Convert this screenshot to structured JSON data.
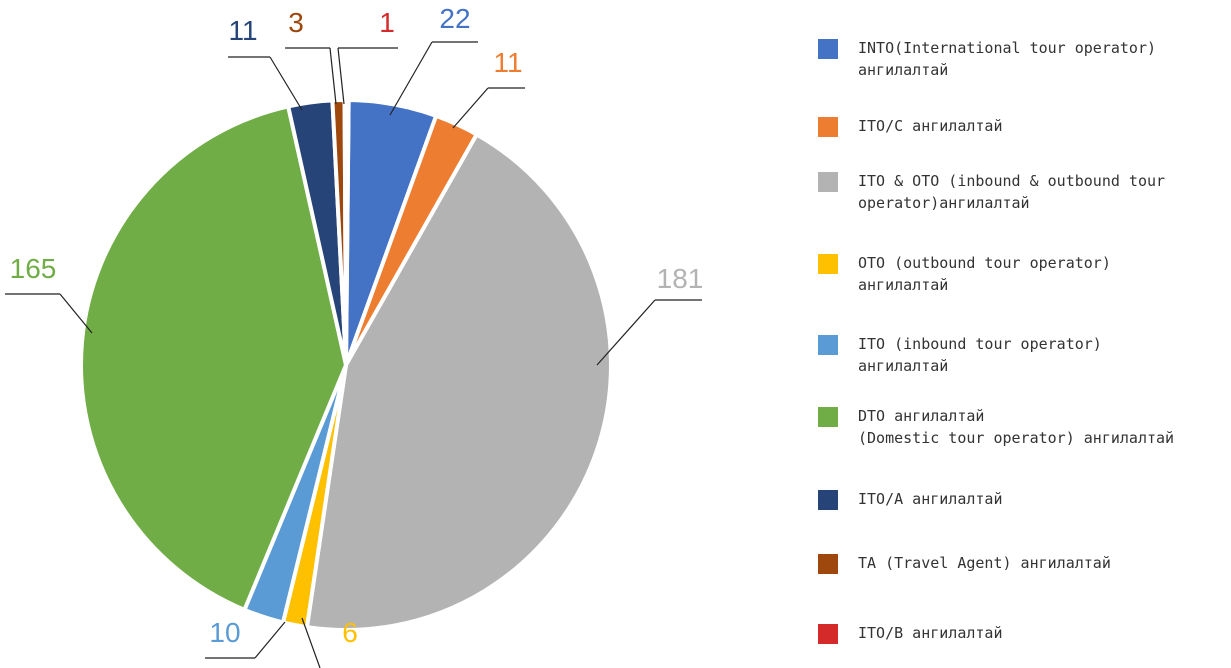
{
  "chart_data": {
    "type": "pie",
    "categories": [
      "INTO(International tour operator)\nангилалтай",
      "ITO/C ангилалтай",
      "ITO & OTO (inbound & outbound tour\noperator)ангилалтай",
      "OTO (outbound tour operator)\nангилалтай",
      "ITO (inbound tour operator)\nангилалтай",
      "DTO ангилалтай\n(Domestic tour operator) ангилалтай",
      "ITO/A ангилалтай",
      "TA (Travel Agent) ангилалтай",
      "ITO/B ангилалтай"
    ],
    "values": [
      22,
      11,
      181,
      6,
      10,
      165,
      11,
      3,
      1
    ],
    "colors": [
      "#4472c4",
      "#ed7d31",
      "#b3b3b3",
      "#ffc000",
      "#5b9bd5",
      "#70ad47",
      "#264478",
      "#9e480e",
      "#d42a2a"
    ],
    "legend": "right"
  }
}
